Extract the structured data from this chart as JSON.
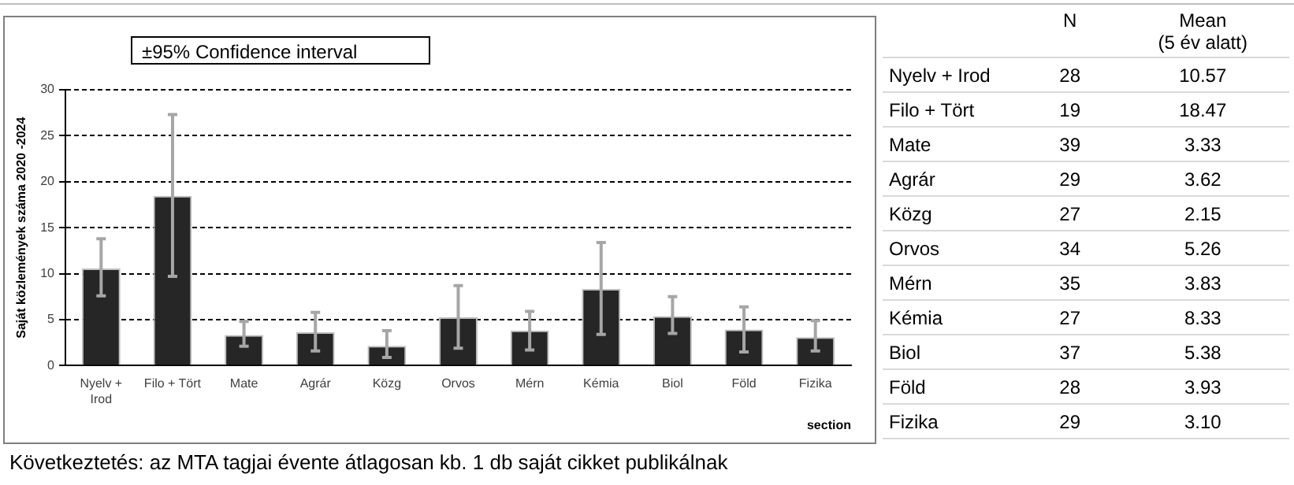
{
  "chart_data": [
    {
      "type": "bar",
      "ylabel": "Saját közlemények száma 2020 -2024",
      "xlabel": "section",
      "categories": [
        "Nyelv + Irod",
        "Filo + Tört",
        "Mate",
        "Agrár",
        "Közg",
        "Orvos",
        "Mérn",
        "Kémia",
        "Biol",
        "Föld",
        "Fizika"
      ],
      "values": [
        10.57,
        18.47,
        3.33,
        3.62,
        2.15,
        5.26,
        3.83,
        8.33,
        5.38,
        3.93,
        3.1
      ],
      "color": "#262626",
      "errors": [
        [
          7.6,
          13.8
        ],
        [
          9.7,
          27.3
        ],
        [
          2.1,
          4.8
        ],
        [
          1.6,
          5.8
        ],
        [
          0.9,
          3.8
        ],
        [
          1.9,
          8.7
        ],
        [
          1.7,
          5.9
        ],
        [
          3.4,
          13.4
        ],
        [
          3.5,
          7.5
        ],
        [
          1.5,
          6.4
        ],
        [
          1.6,
          4.9
        ]
      ],
      "ylim": [
        0,
        30
      ],
      "yticks": [
        0,
        5,
        10,
        15,
        20,
        25,
        30
      ],
      "grid": "y",
      "annotations": [
        "±95% Confidence interval",
        "Következtetés: az MTA tagjai évente átlagosan kb. 1 db saját cikket publikálnak"
      ]
    },
    {
      "type": "other",
      "categories": [
        "Nyelv + Irod",
        "Filo + Tört",
        "Mate",
        "Agrár",
        "Közg",
        "Orvos",
        "Mérn",
        "Kémia",
        "Biol",
        "Föld",
        "Fizika"
      ],
      "series": [
        {
          "name": "N",
          "values": [
            28,
            19,
            39,
            29,
            27,
            34,
            35,
            27,
            37,
            28,
            29
          ]
        },
        {
          "name": "Mean (5 év alatt)",
          "values": [
            10.57,
            18.47,
            3.33,
            3.62,
            2.15,
            5.26,
            3.83,
            8.33,
            5.38,
            3.93,
            3.1
          ],
          "value_labels": [
            "10.57",
            "18.47",
            "3.33",
            "3.62",
            "2.15",
            "5.26",
            "3.83",
            "8.33",
            "5.38",
            "3.93",
            "3.10"
          ]
        }
      ],
      "data_labels": true
    }
  ]
}
